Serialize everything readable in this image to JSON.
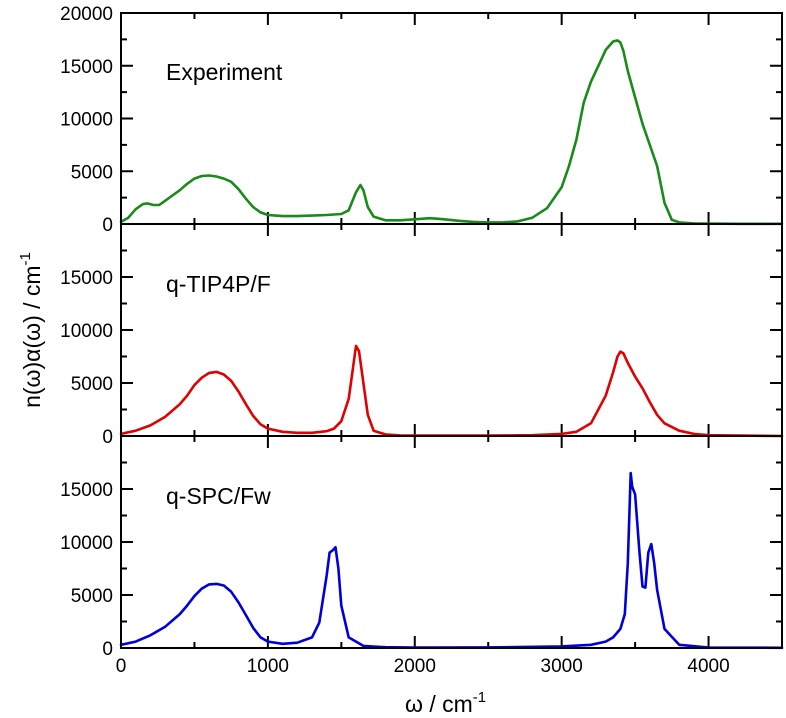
{
  "chart_data": {
    "type": "line",
    "xlabel": "ω / cm",
    "xlabel_sup": "-1",
    "ylabel": "n(ω)α(ω) / cm",
    "ylabel_sup": "-1",
    "xlim": [
      0,
      4500
    ],
    "x_ticks": [
      0,
      1000,
      2000,
      3000,
      4000
    ],
    "x_tick_labels": [
      "0",
      "1000",
      "2000",
      "3000",
      "4000"
    ],
    "panels": [
      {
        "label": "Experiment",
        "color": "#1a8a1a",
        "ylim": [
          0,
          20000
        ],
        "y_ticks": [
          0,
          5000,
          10000,
          15000,
          20000
        ],
        "y_tick_labels": [
          "0",
          "5000",
          "10000",
          "15000",
          "20000"
        ],
        "x": [
          0,
          50,
          100,
          150,
          180,
          220,
          260,
          300,
          350,
          400,
          450,
          500,
          550,
          600,
          650,
          700,
          750,
          800,
          850,
          900,
          950,
          1000,
          1100,
          1200,
          1300,
          1400,
          1500,
          1550,
          1600,
          1630,
          1650,
          1680,
          1720,
          1800,
          1900,
          2000,
          2100,
          2150,
          2200,
          2300,
          2400,
          2500,
          2600,
          2700,
          2800,
          2900,
          3000,
          3050,
          3100,
          3150,
          3200,
          3250,
          3300,
          3350,
          3380,
          3400,
          3420,
          3450,
          3500,
          3550,
          3600,
          3650,
          3700,
          3750,
          3800,
          3900,
          4000,
          4200,
          4500
        ],
        "y": [
          200,
          600,
          1400,
          1900,
          1950,
          1800,
          1800,
          2200,
          2700,
          3200,
          3800,
          4300,
          4550,
          4600,
          4500,
          4300,
          4000,
          3300,
          2400,
          1600,
          1100,
          850,
          750,
          750,
          800,
          850,
          950,
          1300,
          3000,
          3700,
          3200,
          1600,
          700,
          350,
          350,
          450,
          550,
          500,
          450,
          300,
          200,
          150,
          150,
          250,
          600,
          1500,
          3500,
          5500,
          8000,
          11500,
          13500,
          15000,
          16500,
          17300,
          17400,
          17200,
          16400,
          14500,
          12000,
          9500,
          7500,
          5500,
          2000,
          400,
          150,
          60,
          40,
          20,
          20
        ]
      },
      {
        "label": "q-TIP4P/F",
        "color": "#e00000",
        "ylim": [
          0,
          20000
        ],
        "y_ticks": [
          0,
          5000,
          10000,
          15000
        ],
        "y_tick_labels": [
          "0",
          "5000",
          "10000",
          "15000"
        ],
        "x": [
          0,
          100,
          200,
          300,
          400,
          450,
          500,
          550,
          600,
          650,
          700,
          750,
          800,
          850,
          900,
          950,
          1000,
          1100,
          1200,
          1300,
          1400,
          1450,
          1500,
          1550,
          1580,
          1600,
          1620,
          1650,
          1680,
          1720,
          1800,
          1900,
          2000,
          2500,
          2800,
          3000,
          3100,
          3200,
          3300,
          3350,
          3380,
          3400,
          3420,
          3450,
          3500,
          3550,
          3600,
          3650,
          3700,
          3800,
          3900,
          4000,
          4500
        ],
        "y": [
          200,
          500,
          1000,
          1800,
          3000,
          3800,
          4800,
          5500,
          5950,
          6050,
          5800,
          5200,
          4200,
          3000,
          1900,
          1100,
          700,
          400,
          300,
          300,
          450,
          700,
          1400,
          3500,
          6500,
          8500,
          8000,
          5000,
          2000,
          500,
          150,
          60,
          40,
          40,
          80,
          200,
          400,
          1200,
          3800,
          6000,
          7500,
          7950,
          7800,
          6900,
          5600,
          4500,
          3200,
          2000,
          1200,
          500,
          200,
          80,
          0
        ]
      },
      {
        "label": "q-SPC/Fw",
        "color": "#0000dd",
        "ylim": [
          0,
          20000
        ],
        "y_ticks": [
          0,
          5000,
          10000,
          15000
        ],
        "y_tick_labels": [
          "0",
          "5000",
          "10000",
          "15000"
        ],
        "x": [
          0,
          100,
          200,
          300,
          400,
          450,
          500,
          550,
          600,
          650,
          700,
          750,
          800,
          850,
          900,
          950,
          1000,
          1100,
          1200,
          1300,
          1350,
          1400,
          1420,
          1440,
          1460,
          1480,
          1500,
          1550,
          1650,
          1800,
          2000,
          2500,
          3000,
          3200,
          3300,
          3350,
          3400,
          3430,
          3450,
          3470,
          3480,
          3500,
          3530,
          3550,
          3570,
          3590,
          3610,
          3630,
          3650,
          3700,
          3800,
          4000,
          4500
        ],
        "y": [
          300,
          600,
          1200,
          2000,
          3200,
          4000,
          4900,
          5600,
          6000,
          6050,
          5900,
          5300,
          4300,
          3100,
          1900,
          1000,
          600,
          400,
          500,
          1000,
          2400,
          6800,
          9000,
          9200,
          9500,
          7500,
          4000,
          1000,
          200,
          80,
          50,
          60,
          150,
          300,
          600,
          1000,
          1800,
          3200,
          8000,
          16500,
          15200,
          14500,
          9000,
          5800,
          5700,
          9000,
          9800,
          8000,
          5500,
          1800,
          300,
          50,
          20
        ]
      }
    ]
  }
}
